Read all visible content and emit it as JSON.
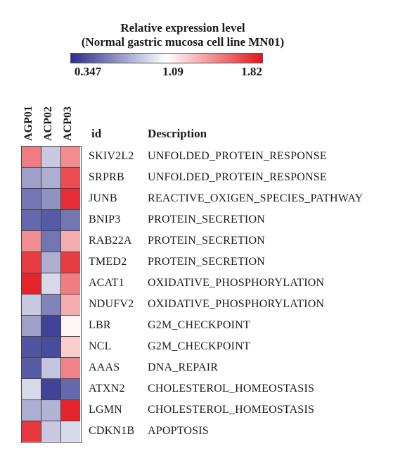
{
  "legend": {
    "title_line1": "Relative expression level",
    "title_line2": "(Normal gastric mucosa cell line MN01)",
    "min_label": "0.347",
    "mid_label": "1.09",
    "max_label": "1.82",
    "colors": {
      "low": "#2b2f8c",
      "mid": "#ffffff",
      "high": "#e3161e"
    }
  },
  "columns": [
    "AGP01",
    "ACP02",
    "ACP03"
  ],
  "headers": {
    "id": "id",
    "description": "Description"
  },
  "chart_data": {
    "type": "heatmap",
    "scale": {
      "min": 0.347,
      "mid": 1.09,
      "max": 1.82
    },
    "columns": [
      "AGP01",
      "ACP02",
      "ACP03"
    ],
    "rows": [
      {
        "id": "SKIV2L2",
        "description": "UNFOLDED_PROTEIN_RESPONSE",
        "values": [
          1.5,
          0.9,
          1.45
        ]
      },
      {
        "id": "SRPRB",
        "description": "UNFOLDED_PROTEIN_RESPONSE",
        "values": [
          0.75,
          0.8,
          1.65
        ]
      },
      {
        "id": "JUNB",
        "description": "REACTIVE_OXIGEN_SPECIES_PATHWAY",
        "values": [
          0.6,
          0.7,
          1.75
        ]
      },
      {
        "id": "BNIP3",
        "description": "PROTEIN_SECRETION",
        "values": [
          0.55,
          0.5,
          0.6
        ]
      },
      {
        "id": "RAB22A",
        "description": "PROTEIN_SECRETION",
        "values": [
          1.45,
          0.6,
          1.35
        ]
      },
      {
        "id": "TMED2",
        "description": "PROTEIN_SECRETION",
        "values": [
          1.7,
          0.8,
          1.7
        ]
      },
      {
        "id": "ACAT1",
        "description": "OXIDATIVE_PHOSPHORYLATION",
        "values": [
          1.78,
          0.95,
          1.5
        ]
      },
      {
        "id": "NDUFV2",
        "description": "OXIDATIVE_PHOSPHORYLATION",
        "values": [
          0.9,
          0.65,
          1.35
        ]
      },
      {
        "id": "LBR",
        "description": "G2M_CHECKPOINT",
        "values": [
          0.75,
          0.42,
          1.12
        ]
      },
      {
        "id": "NCL",
        "description": "G2M_CHECKPOINT",
        "values": [
          0.48,
          0.45,
          1.25
        ]
      },
      {
        "id": "AAAS",
        "description": "DNA_REPAIR",
        "values": [
          0.5,
          0.88,
          1.48
        ]
      },
      {
        "id": "ATXN2",
        "description": "CHOLESTEROL_HOMEOSTASIS",
        "values": [
          0.95,
          0.42,
          0.55
        ]
      },
      {
        "id": "LGMN",
        "description": "CHOLESTEROL_HOMEOSTASIS",
        "values": [
          0.8,
          0.82,
          1.78
        ]
      },
      {
        "id": "CDKN1B",
        "description": "APOPTOSIS",
        "values": [
          1.72,
          0.9,
          0.95
        ]
      }
    ]
  }
}
